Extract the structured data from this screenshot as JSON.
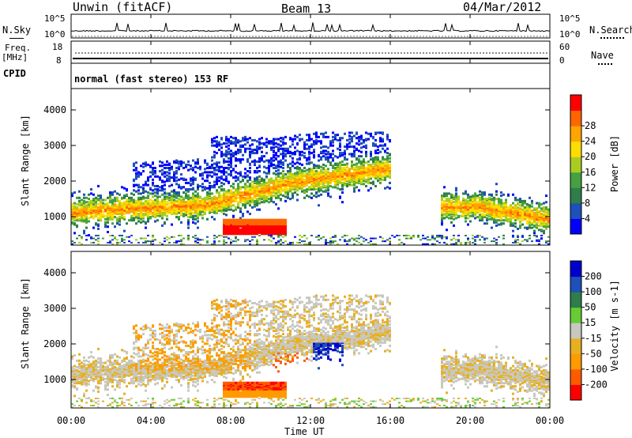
{
  "header": {
    "station": "Unwin (fitACF)",
    "beam": "Beam 13",
    "date": "04/Mar/2012"
  },
  "panels": {
    "nsky_label": "N.Sky",
    "nsearch_label": "N.Search",
    "freq_label": "Freq.",
    "freq_unit": "[MHz]",
    "nave_label": "Nave",
    "cpid_label": "CPID",
    "cpid_value": "normal (fast stereo) 153 RF",
    "noise_left_ticks": [
      "10^5",
      "10^0"
    ],
    "noise_right_ticks": [
      "10^5",
      "10^0"
    ],
    "freq_left_ticks": [
      "18",
      "8"
    ],
    "freq_right_ticks": [
      "60",
      "0"
    ]
  },
  "colors": {
    "power_scale": [
      "#0000ff",
      "#1f4fb8",
      "#2e7d4a",
      "#45a040",
      "#aacc22",
      "#ffdd00",
      "#ffa500",
      "#ff6600",
      "#ff0000"
    ],
    "velocity_scale": [
      "#ff0000",
      "#ff5a00",
      "#ff9a00",
      "#e8b020",
      "#c8c8c0",
      "#66cc33",
      "#2e7d4a",
      "#1f4fb8",
      "#0000cc"
    ]
  },
  "chart_data": [
    {
      "type": "heatmap",
      "title": "Power",
      "xlabel": "",
      "ylabel": "Slant Range [km]",
      "x_ticks": [
        "00:00",
        "04:00",
        "08:00",
        "12:00",
        "16:00",
        "20:00",
        "00:00"
      ],
      "y_ticks": [
        "1000",
        "2000",
        "3000",
        "4000"
      ],
      "ylim": [
        200,
        4600
      ],
      "colorbar_label": "Power [dB]",
      "colorbar_ticks": [
        "4",
        "8",
        "12",
        "16",
        "20",
        "24",
        "28"
      ]
    },
    {
      "type": "heatmap",
      "title": "Velocity",
      "xlabel": "Time UT",
      "ylabel": "Slant Range [km]",
      "x_ticks": [
        "00:00",
        "04:00",
        "08:00",
        "12:00",
        "16:00",
        "20:00",
        "00:00"
      ],
      "y_ticks": [
        "1000",
        "2000",
        "3000",
        "4000"
      ],
      "ylim": [
        200,
        4600
      ],
      "colorbar_label": "Velocity [m s-1]",
      "colorbar_ticks": [
        "200",
        "100",
        "50",
        "15",
        "-15",
        "-50",
        "-100",
        "-200"
      ]
    }
  ]
}
